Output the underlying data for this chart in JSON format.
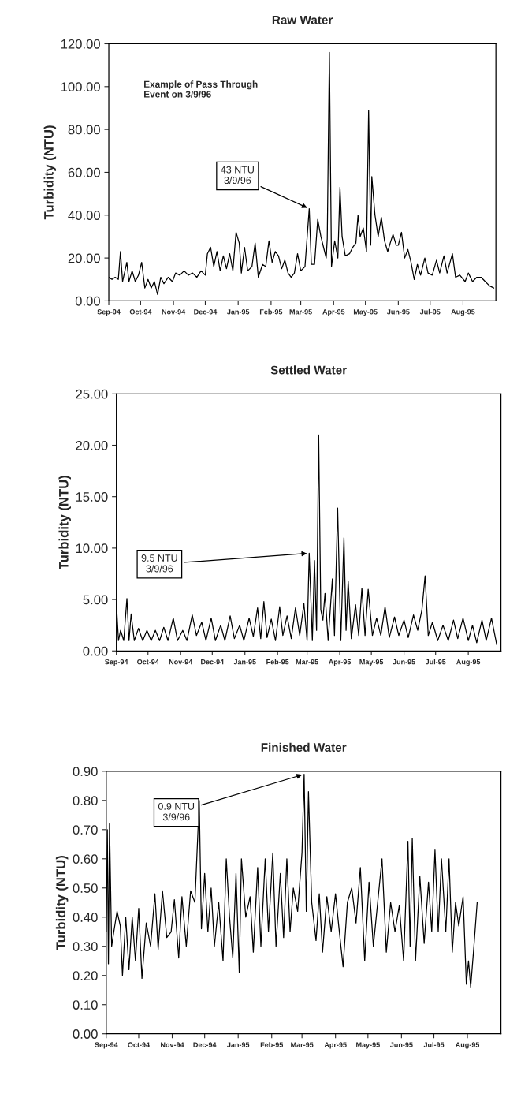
{
  "chart_data": [
    {
      "type": "line",
      "title": "Raw Water",
      "ylabel": "Turbidity (NTU)",
      "series": [
        {
          "color": "#000000",
          "x": [
            "1994-09-01",
            "1994-09-04",
            "1994-09-07",
            "1994-09-10",
            "1994-09-12",
            "1994-09-14",
            "1994-09-18",
            "1994-09-20",
            "1994-09-23",
            "1994-09-26",
            "1994-09-29",
            "1994-10-02",
            "1994-10-05",
            "1994-10-08",
            "1994-10-11",
            "1994-10-14",
            "1994-10-17",
            "1994-10-20",
            "1994-10-23",
            "1994-10-27",
            "1994-10-31",
            "1994-11-03",
            "1994-11-07",
            "1994-11-11",
            "1994-11-15",
            "1994-11-19",
            "1994-11-23",
            "1994-11-27",
            "1994-12-01",
            "1994-12-03",
            "1994-12-06",
            "1994-12-09",
            "1994-12-12",
            "1994-12-15",
            "1994-12-18",
            "1994-12-21",
            "1994-12-24",
            "1994-12-27",
            "1994-12-30",
            "1995-01-02",
            "1995-01-04",
            "1995-01-07",
            "1995-01-10",
            "1995-01-14",
            "1995-01-17",
            "1995-01-20",
            "1995-01-24",
            "1995-01-27",
            "1995-01-30",
            "1995-02-02",
            "1995-02-05",
            "1995-02-08",
            "1995-02-11",
            "1995-02-14",
            "1995-02-17",
            "1995-02-20",
            "1995-02-23",
            "1995-02-26",
            "1995-03-01",
            "1995-03-05",
            "1995-03-09",
            "1995-03-11",
            "1995-03-14",
            "1995-03-17",
            "1995-03-20",
            "1995-03-23",
            "1995-03-25",
            "1995-03-26",
            "1995-03-28",
            "1995-03-30",
            "1995-04-02",
            "1995-04-05",
            "1995-04-07",
            "1995-04-09",
            "1995-04-12",
            "1995-04-16",
            "1995-04-19",
            "1995-04-22",
            "1995-04-24",
            "1995-04-26",
            "1995-04-29",
            "1995-05-02",
            "1995-05-04",
            "1995-05-06",
            "1995-05-07",
            "1995-05-10",
            "1995-05-13",
            "1995-05-16",
            "1995-05-19",
            "1995-05-22",
            "1995-05-25",
            "1995-05-27",
            "1995-05-30",
            "1995-06-01",
            "1995-06-04",
            "1995-06-07",
            "1995-06-10",
            "1995-06-13",
            "1995-06-16",
            "1995-06-19",
            "1995-06-22",
            "1995-06-26",
            "1995-06-29",
            "1995-07-03",
            "1995-07-07",
            "1995-07-10",
            "1995-07-14",
            "1995-07-17",
            "1995-07-22",
            "1995-07-25",
            "1995-07-29",
            "1995-08-03",
            "1995-08-06",
            "1995-08-10",
            "1995-08-14",
            "1995-08-18",
            "1995-08-22",
            "1995-08-26",
            "1995-08-30"
          ],
          "values": [
            11,
            10,
            11,
            10,
            23,
            9,
            18,
            9,
            14,
            9,
            12,
            18,
            6,
            10,
            6,
            9,
            3,
            11,
            8,
            11,
            9,
            13,
            12,
            14,
            12,
            13,
            11,
            14,
            12,
            22,
            25,
            16,
            23,
            14,
            21,
            15,
            22,
            14,
            32,
            27,
            13,
            25,
            14,
            16,
            27,
            11,
            17,
            16,
            28,
            18,
            23,
            21,
            15,
            19,
            13,
            11,
            13,
            22,
            14,
            16,
            43,
            17,
            17,
            38,
            30,
            24,
            20,
            29,
            116,
            16,
            28,
            20,
            53,
            30,
            21,
            22,
            25,
            27,
            40,
            30,
            34,
            23,
            89,
            26,
            58,
            40,
            30,
            39,
            28,
            23,
            28,
            31,
            26,
            26,
            32,
            20,
            24,
            18,
            10,
            17,
            12,
            20,
            13,
            12,
            19,
            13,
            21,
            13,
            22,
            11,
            12,
            9,
            13,
            9,
            11,
            11,
            9,
            7,
            6
          ]
        }
      ],
      "xlim": [
        "1994-09-01",
        "1995-09-01"
      ],
      "xticks": [
        {
          "value": "1994-09-01",
          "label": "Sep-94"
        },
        {
          "value": "1994-10-01",
          "label": "Oct-94"
        },
        {
          "value": "1994-11-01",
          "label": "Nov-94"
        },
        {
          "value": "1994-12-01",
          "label": "Dec-94"
        },
        {
          "value": "1995-01-01",
          "label": "Jan-95"
        },
        {
          "value": "1995-02-01",
          "label": "Feb-95"
        },
        {
          "value": "1995-03-01",
          "label": "Mar-95"
        },
        {
          "value": "1995-04-01",
          "label": "Apr-95"
        },
        {
          "value": "1995-05-01",
          "label": "May-95"
        },
        {
          "value": "1995-06-01",
          "label": "Jun-95"
        },
        {
          "value": "1995-07-01",
          "label": "Jul-95"
        },
        {
          "value": "1995-08-01",
          "label": "Aug-95"
        }
      ],
      "ylim": [
        0,
        120
      ],
      "yticks": [
        {
          "value": 0,
          "label": "0.00"
        },
        {
          "value": 20,
          "label": "20.00"
        },
        {
          "value": 40,
          "label": "40.00"
        },
        {
          "value": 60,
          "label": "60.00"
        },
        {
          "value": 80,
          "label": "80.00"
        },
        {
          "value": 100,
          "label": "100.00"
        },
        {
          "value": 120,
          "label": "120.00"
        }
      ],
      "annotations": [
        "Example of Pass Through\nEvent on 3/9/96",
        {
          "text": "43 NTU\n3/9/96",
          "x": "1995-03-09",
          "y": 43
        }
      ]
    },
    {
      "type": "line",
      "title": "Settled Water",
      "ylabel": "Turbidity (NTU)",
      "series": [
        {
          "color": "#000000",
          "x": [
            "1994-09-01",
            "1994-09-03",
            "1994-09-05",
            "1994-09-08",
            "1994-09-11",
            "1994-09-13",
            "1994-09-15",
            "1994-09-18",
            "1994-09-22",
            "1994-09-26",
            "1994-09-30",
            "1994-10-04",
            "1994-10-08",
            "1994-10-12",
            "1994-10-16",
            "1994-10-20",
            "1994-10-25",
            "1994-10-29",
            "1994-11-03",
            "1994-11-07",
            "1994-11-12",
            "1994-11-16",
            "1994-11-21",
            "1994-11-25",
            "1994-11-30",
            "1994-12-04",
            "1994-12-09",
            "1994-12-13",
            "1994-12-18",
            "1994-12-22",
            "1994-12-27",
            "1994-12-31",
            "1995-01-05",
            "1995-01-09",
            "1995-01-13",
            "1995-01-16",
            "1995-01-19",
            "1995-01-22",
            "1995-01-26",
            "1995-01-30",
            "1995-02-03",
            "1995-02-06",
            "1995-02-10",
            "1995-02-14",
            "1995-02-18",
            "1995-02-22",
            "1995-02-26",
            "1995-03-01",
            "1995-03-03",
            "1995-03-06",
            "1995-03-08",
            "1995-03-10",
            "1995-03-12",
            "1995-03-14",
            "1995-03-16",
            "1995-03-18",
            "1995-03-21",
            "1995-03-25",
            "1995-03-27",
            "1995-03-30",
            "1995-04-02",
            "1995-04-05",
            "1995-04-07",
            "1995-04-09",
            "1995-04-12",
            "1995-04-16",
            "1995-04-19",
            "1995-04-22",
            "1995-04-25",
            "1995-04-28",
            "1995-05-02",
            "1995-05-06",
            "1995-05-10",
            "1995-05-14",
            "1995-05-18",
            "1995-05-23",
            "1995-05-27",
            "1995-06-01",
            "1995-06-05",
            "1995-06-10",
            "1995-06-14",
            "1995-06-18",
            "1995-06-21",
            "1995-06-24",
            "1995-06-28",
            "1995-07-03",
            "1995-07-08",
            "1995-07-13",
            "1995-07-18",
            "1995-07-22",
            "1995-07-27",
            "1995-08-01",
            "1995-08-05",
            "1995-08-09",
            "1995-08-14",
            "1995-08-18",
            "1995-08-23",
            "1995-08-28"
          ],
          "values": [
            4.6,
            1.0,
            2.0,
            1.0,
            5.1,
            1.0,
            3.6,
            1.0,
            2.2,
            1.0,
            2.0,
            1.0,
            2.0,
            1.0,
            2.3,
            1.0,
            3.2,
            1.0,
            2.0,
            1.0,
            3.5,
            1.5,
            2.8,
            1.0,
            3.2,
            1.0,
            2.5,
            1.0,
            3.4,
            1.2,
            2.5,
            1.0,
            3.2,
            1.4,
            4.2,
            1.2,
            4.8,
            1.3,
            3.1,
            1.0,
            4.3,
            1.5,
            3.4,
            1.2,
            4.2,
            1.5,
            4.6,
            1.0,
            9.5,
            1.0,
            8.8,
            2.0,
            21.0,
            4.0,
            3.0,
            5.6,
            1.0,
            7.0,
            1.5,
            13.9,
            1.0,
            11.0,
            2.0,
            6.8,
            1.2,
            4.5,
            1.5,
            6.1,
            1.5,
            6.0,
            1.5,
            3.2,
            1.5,
            4.3,
            1.3,
            3.3,
            1.5,
            3.0,
            1.3,
            3.5,
            2.0,
            4.0,
            7.3,
            1.5,
            2.8,
            1.0,
            2.5,
            1.0,
            3.0,
            1.2,
            3.2,
            1.0,
            2.5,
            0.8,
            3.0,
            1.0,
            3.2,
            0.6
          ]
        }
      ],
      "xlim": [
        "1994-09-01",
        "1995-09-01"
      ],
      "xticks": [
        {
          "value": "1994-09-01",
          "label": "Sep-94"
        },
        {
          "value": "1994-10-01",
          "label": "Oct-94"
        },
        {
          "value": "1994-11-01",
          "label": "Nov-94"
        },
        {
          "value": "1994-12-01",
          "label": "Dec-94"
        },
        {
          "value": "1995-01-01",
          "label": "Jan-95"
        },
        {
          "value": "1995-02-01",
          "label": "Feb-95"
        },
        {
          "value": "1995-03-01",
          "label": "Mar-95"
        },
        {
          "value": "1995-04-01",
          "label": "Apr-95"
        },
        {
          "value": "1995-05-01",
          "label": "May-95"
        },
        {
          "value": "1995-06-01",
          "label": "Jun-95"
        },
        {
          "value": "1995-07-01",
          "label": "Jul-95"
        },
        {
          "value": "1995-08-01",
          "label": "Aug-95"
        }
      ],
      "ylim": [
        0,
        25
      ],
      "yticks": [
        {
          "value": 0,
          "label": "0.00"
        },
        {
          "value": 5,
          "label": "5.00"
        },
        {
          "value": 10,
          "label": "10.00"
        },
        {
          "value": 15,
          "label": "15.00"
        },
        {
          "value": 20,
          "label": "20.00"
        },
        {
          "value": 25,
          "label": "25.00"
        }
      ],
      "annotations": [
        {
          "text": "9.5 NTU\n3/9/96",
          "x": "1995-03-03",
          "y": 9.5
        }
      ]
    },
    {
      "type": "line",
      "title": "Finished Water",
      "ylabel": "Turbidity (NTU)",
      "series": [
        {
          "color": "#000000",
          "x": [
            "1994-09-01",
            "1994-09-02",
            "1994-09-03",
            "1994-09-04",
            "1994-09-06",
            "1994-09-08",
            "1994-09-11",
            "1994-09-14",
            "1994-09-16",
            "1994-09-19",
            "1994-09-22",
            "1994-09-25",
            "1994-09-28",
            "1994-10-01",
            "1994-10-04",
            "1994-10-08",
            "1994-10-12",
            "1994-10-16",
            "1994-10-19",
            "1994-10-23",
            "1994-10-27",
            "1994-10-31",
            "1994-11-03",
            "1994-11-07",
            "1994-11-10",
            "1994-11-14",
            "1994-11-18",
            "1994-11-22",
            "1994-11-26",
            "1994-11-28",
            "1994-12-01",
            "1994-12-04",
            "1994-12-07",
            "1994-12-10",
            "1994-12-14",
            "1994-12-18",
            "1994-12-21",
            "1994-12-24",
            "1994-12-27",
            "1994-12-30",
            "1995-01-02",
            "1995-01-04",
            "1995-01-08",
            "1995-01-12",
            "1995-01-15",
            "1995-01-19",
            "1995-01-22",
            "1995-01-26",
            "1995-01-29",
            "1995-02-02",
            "1995-02-05",
            "1995-02-09",
            "1995-02-12",
            "1995-02-15",
            "1995-02-18",
            "1995-02-21",
            "1995-02-25",
            "1995-03-01",
            "1995-03-03",
            "1995-03-05",
            "1995-03-07",
            "1995-03-10",
            "1995-03-14",
            "1995-03-17",
            "1995-03-20",
            "1995-03-24",
            "1995-03-28",
            "1995-04-01",
            "1995-04-04",
            "1995-04-08",
            "1995-04-12",
            "1995-04-16",
            "1995-04-20",
            "1995-04-24",
            "1995-04-28",
            "1995-05-02",
            "1995-05-06",
            "1995-05-10",
            "1995-05-14",
            "1995-05-18",
            "1995-05-22",
            "1995-05-26",
            "1995-05-30",
            "1995-06-03",
            "1995-06-07",
            "1995-06-09",
            "1995-06-11",
            "1995-06-14",
            "1995-06-18",
            "1995-06-22",
            "1995-06-26",
            "1995-06-29",
            "1995-07-02",
            "1995-07-05",
            "1995-07-08",
            "1995-07-12",
            "1995-07-15",
            "1995-07-18",
            "1995-07-21",
            "1995-07-24",
            "1995-07-28",
            "1995-07-31",
            "1995-08-02",
            "1995-08-04",
            "1995-08-07",
            "1995-08-10"
          ],
          "values": [
            0.35,
            0.7,
            0.24,
            0.72,
            0.3,
            0.35,
            0.42,
            0.37,
            0.2,
            0.4,
            0.22,
            0.4,
            0.25,
            0.43,
            0.19,
            0.38,
            0.3,
            0.48,
            0.29,
            0.49,
            0.33,
            0.35,
            0.46,
            0.26,
            0.47,
            0.3,
            0.49,
            0.45,
            0.8,
            0.36,
            0.55,
            0.35,
            0.5,
            0.3,
            0.45,
            0.25,
            0.6,
            0.4,
            0.26,
            0.55,
            0.21,
            0.6,
            0.4,
            0.47,
            0.28,
            0.57,
            0.3,
            0.6,
            0.35,
            0.62,
            0.3,
            0.55,
            0.33,
            0.6,
            0.35,
            0.5,
            0.42,
            0.62,
            0.89,
            0.42,
            0.83,
            0.45,
            0.32,
            0.48,
            0.28,
            0.47,
            0.35,
            0.48,
            0.37,
            0.23,
            0.45,
            0.5,
            0.38,
            0.57,
            0.25,
            0.52,
            0.3,
            0.45,
            0.6,
            0.28,
            0.45,
            0.35,
            0.44,
            0.25,
            0.66,
            0.3,
            0.67,
            0.25,
            0.54,
            0.31,
            0.52,
            0.35,
            0.63,
            0.35,
            0.6,
            0.35,
            0.6,
            0.28,
            0.45,
            0.37,
            0.47,
            0.17,
            0.25,
            0.16,
            0.3,
            0.45
          ]
        }
      ],
      "xlim": [
        "1994-09-01",
        "1995-09-01"
      ],
      "xticks": [
        {
          "value": "1994-09-01",
          "label": "Sep-94"
        },
        {
          "value": "1994-10-01",
          "label": "Oct-94"
        },
        {
          "value": "1994-11-01",
          "label": "Nov-94"
        },
        {
          "value": "1994-12-01",
          "label": "Dec-94"
        },
        {
          "value": "1995-01-01",
          "label": "Jan-95"
        },
        {
          "value": "1995-02-01",
          "label": "Feb-95"
        },
        {
          "value": "1995-03-01",
          "label": "Mar-95"
        },
        {
          "value": "1995-04-01",
          "label": "Apr-95"
        },
        {
          "value": "1995-05-01",
          "label": "May-95"
        },
        {
          "value": "1995-06-01",
          "label": "Jun-95"
        },
        {
          "value": "1995-07-01",
          "label": "Jul-95"
        },
        {
          "value": "1995-08-01",
          "label": "Aug-95"
        }
      ],
      "ylim": [
        0,
        0.9
      ],
      "yticks": [
        {
          "value": 0,
          "label": "0.00"
        },
        {
          "value": 0.1,
          "label": "0.10"
        },
        {
          "value": 0.2,
          "label": "0.20"
        },
        {
          "value": 0.3,
          "label": "0.30"
        },
        {
          "value": 0.4,
          "label": "0.40"
        },
        {
          "value": 0.5,
          "label": "0.50"
        },
        {
          "value": 0.6,
          "label": "0.60"
        },
        {
          "value": 0.7,
          "label": "0.70"
        },
        {
          "value": 0.8,
          "label": "0.80"
        },
        {
          "value": 0.9,
          "label": "0.90"
        }
      ],
      "annotations": [
        {
          "text": "0.9 NTU\n3/9/96",
          "x": "1995-03-03",
          "y": 0.89
        }
      ]
    }
  ]
}
